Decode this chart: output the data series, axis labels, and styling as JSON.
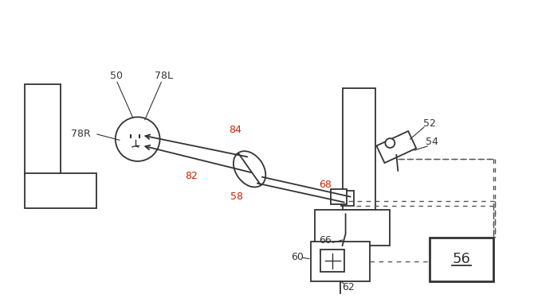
{
  "bg_color": "#ffffff",
  "line_color": "#333333",
  "red_label_color": "#cc2200",
  "label_color": "#333333",
  "fig_width": 6.7,
  "fig_height": 3.75,
  "dpi": 100
}
